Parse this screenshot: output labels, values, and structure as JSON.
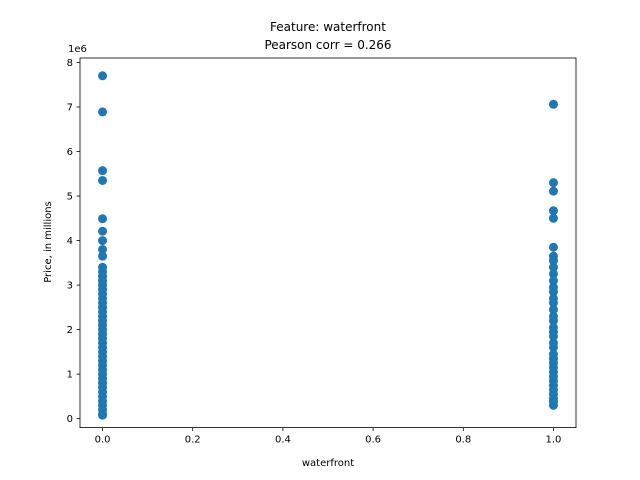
{
  "chart_data": {
    "type": "scatter",
    "title": "Feature: waterfront",
    "subtitle": "Pearson corr = 0.266",
    "xlabel": "waterfront",
    "ylabel": "Price, in millions",
    "y_offset_label": "1e6",
    "xlim": [
      -0.05,
      1.05
    ],
    "ylim": [
      -0.2,
      8.1
    ],
    "xticks": [
      0.0,
      0.2,
      0.4,
      0.6,
      0.8,
      1.0
    ],
    "xtick_labels": [
      "0.0",
      "0.2",
      "0.4",
      "0.6",
      "0.8",
      "1.0"
    ],
    "yticks": [
      0,
      1,
      2,
      3,
      4,
      5,
      6,
      7,
      8
    ],
    "ytick_labels": [
      "0",
      "1",
      "2",
      "3",
      "4",
      "5",
      "6",
      "7",
      "8"
    ],
    "grid": false,
    "color": "#1f77b4",
    "y_scale_note": "y values in units of 1e6",
    "series": [
      {
        "points": [
          {
            "x": 0,
            "y": 7.7
          },
          {
            "x": 0,
            "y": 6.89
          },
          {
            "x": 0,
            "y": 5.57
          },
          {
            "x": 0,
            "y": 5.35
          },
          {
            "x": 0,
            "y": 4.49
          },
          {
            "x": 0,
            "y": 4.21
          },
          {
            "x": 0,
            "y": 4.0
          },
          {
            "x": 0,
            "y": 3.8
          },
          {
            "x": 0,
            "y": 3.65
          },
          {
            "x": 0,
            "y": 3.4
          },
          {
            "x": 0,
            "y": 3.3
          },
          {
            "x": 0,
            "y": 3.2
          },
          {
            "x": 0,
            "y": 3.1
          },
          {
            "x": 0,
            "y": 3.0
          },
          {
            "x": 0,
            "y": 2.9
          },
          {
            "x": 0,
            "y": 2.8
          },
          {
            "x": 0,
            "y": 2.7
          },
          {
            "x": 0,
            "y": 2.6
          },
          {
            "x": 0,
            "y": 2.5
          },
          {
            "x": 0,
            "y": 2.4
          },
          {
            "x": 0,
            "y": 2.3
          },
          {
            "x": 0,
            "y": 2.2
          },
          {
            "x": 0,
            "y": 2.1
          },
          {
            "x": 0,
            "y": 2.0
          },
          {
            "x": 0,
            "y": 1.9
          },
          {
            "x": 0,
            "y": 1.8
          },
          {
            "x": 0,
            "y": 1.7
          },
          {
            "x": 0,
            "y": 1.6
          },
          {
            "x": 0,
            "y": 1.5
          },
          {
            "x": 0,
            "y": 1.4
          },
          {
            "x": 0,
            "y": 1.3
          },
          {
            "x": 0,
            "y": 1.2
          },
          {
            "x": 0,
            "y": 1.1
          },
          {
            "x": 0,
            "y": 1.0
          },
          {
            "x": 0,
            "y": 0.9
          },
          {
            "x": 0,
            "y": 0.8
          },
          {
            "x": 0,
            "y": 0.7
          },
          {
            "x": 0,
            "y": 0.6
          },
          {
            "x": 0,
            "y": 0.5
          },
          {
            "x": 0,
            "y": 0.4
          },
          {
            "x": 0,
            "y": 0.3
          },
          {
            "x": 0,
            "y": 0.2
          },
          {
            "x": 0,
            "y": 0.1
          },
          {
            "x": 0,
            "y": 0.08
          },
          {
            "x": 1,
            "y": 7.06
          },
          {
            "x": 1,
            "y": 5.3
          },
          {
            "x": 1,
            "y": 5.11
          },
          {
            "x": 1,
            "y": 4.67
          },
          {
            "x": 1,
            "y": 4.5
          },
          {
            "x": 1,
            "y": 3.85
          },
          {
            "x": 1,
            "y": 3.65
          },
          {
            "x": 1,
            "y": 3.55
          },
          {
            "x": 1,
            "y": 3.4
          },
          {
            "x": 1,
            "y": 3.25
          },
          {
            "x": 1,
            "y": 3.1
          },
          {
            "x": 1,
            "y": 2.95
          },
          {
            "x": 1,
            "y": 2.85
          },
          {
            "x": 1,
            "y": 2.7
          },
          {
            "x": 1,
            "y": 2.6
          },
          {
            "x": 1,
            "y": 2.45
          },
          {
            "x": 1,
            "y": 2.3
          },
          {
            "x": 1,
            "y": 2.2
          },
          {
            "x": 1,
            "y": 2.05
          },
          {
            "x": 1,
            "y": 1.95
          },
          {
            "x": 1,
            "y": 1.85
          },
          {
            "x": 1,
            "y": 1.7
          },
          {
            "x": 1,
            "y": 1.6
          },
          {
            "x": 1,
            "y": 1.45
          },
          {
            "x": 1,
            "y": 1.35
          },
          {
            "x": 1,
            "y": 1.25
          },
          {
            "x": 1,
            "y": 1.15
          },
          {
            "x": 1,
            "y": 1.05
          },
          {
            "x": 1,
            "y": 0.95
          },
          {
            "x": 1,
            "y": 0.85
          },
          {
            "x": 1,
            "y": 0.75
          },
          {
            "x": 1,
            "y": 0.65
          },
          {
            "x": 1,
            "y": 0.55
          },
          {
            "x": 1,
            "y": 0.45
          },
          {
            "x": 1,
            "y": 0.38
          },
          {
            "x": 1,
            "y": 0.3
          }
        ]
      }
    ]
  }
}
